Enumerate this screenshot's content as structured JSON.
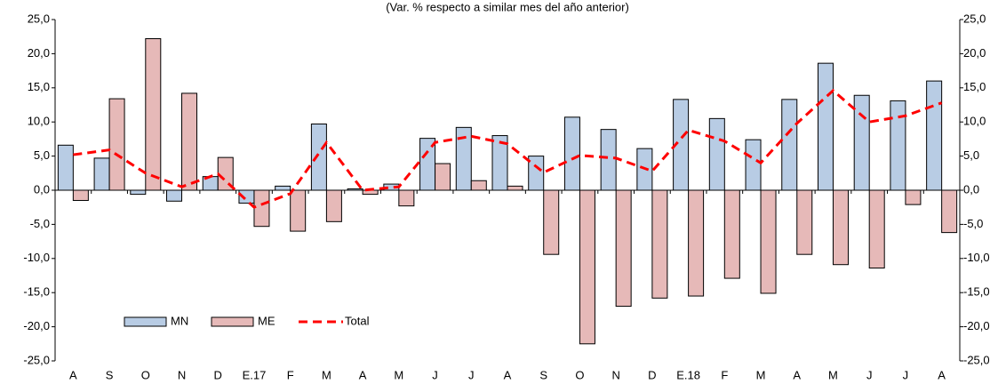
{
  "chart_data": {
    "type": "bar",
    "subtitle": "(Var. % respecto a similar mes del año anterior)",
    "categories": [
      "A",
      "S",
      "O",
      "N",
      "D",
      "E.17",
      "F",
      "M",
      "A",
      "M",
      "J",
      "J",
      "A",
      "S",
      "O",
      "N",
      "D",
      "E.18",
      "F",
      "M",
      "A",
      "M",
      "J",
      "J",
      "A"
    ],
    "series": [
      {
        "name": "MN",
        "type": "bar",
        "color": "#b8cce4",
        "values": [
          6.6,
          4.7,
          -0.6,
          -1.6,
          2.0,
          -1.9,
          0.6,
          9.7,
          0.2,
          0.9,
          7.6,
          9.2,
          8.0,
          5.0,
          10.7,
          8.9,
          6.1,
          13.3,
          10.5,
          7.4,
          13.3,
          18.6,
          13.9,
          13.1,
          16.0
        ]
      },
      {
        "name": "ME",
        "type": "bar",
        "color": "#e6b9b8",
        "values": [
          -1.5,
          13.4,
          22.2,
          14.2,
          4.8,
          -5.3,
          -6.0,
          -4.6,
          -0.6,
          -2.3,
          3.9,
          1.4,
          0.6,
          -9.4,
          -22.5,
          -17.0,
          -15.8,
          -15.5,
          -12.9,
          -15.1,
          -9.4,
          -10.9,
          -11.4,
          -2.1,
          -6.2
        ]
      },
      {
        "name": "Total",
        "type": "line",
        "color": "#ff0000",
        "values": [
          5.2,
          5.9,
          2.5,
          0.5,
          2.4,
          -2.5,
          -0.5,
          7.0,
          0.0,
          0.5,
          7.0,
          7.9,
          6.8,
          2.6,
          5.1,
          4.7,
          2.8,
          8.8,
          7.2,
          4.0,
          9.8,
          14.6,
          10.0,
          10.9,
          12.8
        ]
      }
    ],
    "ylim": [
      -25,
      25
    ],
    "yticks": [
      {
        "value": 25,
        "label": "25,0"
      },
      {
        "value": 20,
        "label": "20,0"
      },
      {
        "value": 15,
        "label": "15,0"
      },
      {
        "value": 10,
        "label": "10,0"
      },
      {
        "value": 5,
        "label": "5,0"
      },
      {
        "value": 0,
        "label": "0,0"
      },
      {
        "value": -5,
        "label": "-5,0"
      },
      {
        "value": -10,
        "label": "-10,0"
      },
      {
        "value": -15,
        "label": "-15,0"
      },
      {
        "value": -20,
        "label": "-20,0"
      },
      {
        "value": -25,
        "label": "-25,0"
      }
    ],
    "y2lim": [
      -25,
      25
    ],
    "y2ticks": [
      {
        "value": 25,
        "label": "25,0"
      },
      {
        "value": 20,
        "label": "20,0"
      },
      {
        "value": 15,
        "label": "15,0"
      },
      {
        "value": 10,
        "label": "10,0"
      },
      {
        "value": 5,
        "label": "5,0"
      },
      {
        "value": 0,
        "label": "0,0"
      },
      {
        "value": -5,
        "label": "-5,0"
      },
      {
        "value": -10,
        "label": "-10,0"
      },
      {
        "value": -15,
        "label": "-15,0"
      },
      {
        "value": -20,
        "label": "-20,0"
      },
      {
        "value": -25,
        "label": "-25,0"
      }
    ],
    "legend": "lower left",
    "grid": false
  }
}
